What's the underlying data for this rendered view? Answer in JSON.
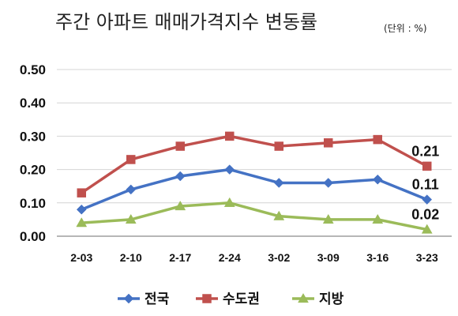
{
  "chart_data": {
    "type": "line",
    "title": "주간 아파트 매매가격지수 변동률",
    "unit_note": "(단위 : %)",
    "categories": [
      "2-03",
      "2-10",
      "2-17",
      "2-24",
      "3-02",
      "3-09",
      "3-16",
      "3-23"
    ],
    "ylim": [
      0,
      0.5
    ],
    "yticks": [
      "0.00",
      "0.10",
      "0.20",
      "0.30",
      "0.40",
      "0.50"
    ],
    "grid": true,
    "legend_position": "bottom",
    "series": [
      {
        "name": "전국",
        "color": "#4472C4",
        "marker": "diamond",
        "values": [
          0.08,
          0.14,
          0.18,
          0.2,
          0.16,
          0.16,
          0.17,
          0.11
        ]
      },
      {
        "name": "수도권",
        "color": "#C0504D",
        "marker": "square",
        "values": [
          0.13,
          0.23,
          0.27,
          0.3,
          0.27,
          0.28,
          0.29,
          0.21
        ]
      },
      {
        "name": "지방",
        "color": "#9BBB59",
        "marker": "triangle",
        "values": [
          0.04,
          0.05,
          0.09,
          0.1,
          0.06,
          0.05,
          0.05,
          0.02
        ]
      }
    ],
    "end_labels": [
      "0.11",
      "0.21",
      "0.02"
    ]
  }
}
